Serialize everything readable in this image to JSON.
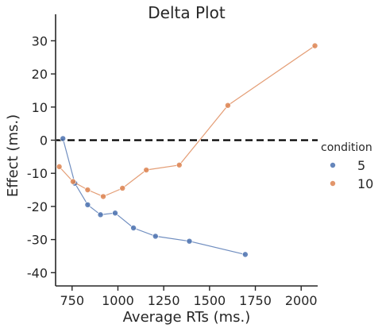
{
  "chart_data": {
    "type": "line",
    "title": "Delta Plot",
    "xlabel": "Average RTs (ms.)",
    "ylabel": "Effect (ms.)",
    "xlim": [
      660,
      2090
    ],
    "ylim": [
      -44,
      38
    ],
    "xticks": [
      750,
      1000,
      1250,
      1500,
      1750,
      2000
    ],
    "yticks": [
      -40,
      -30,
      -20,
      -10,
      0,
      10,
      20,
      30
    ],
    "reference_line": {
      "y": 0,
      "style": "dashed",
      "color": "#000000"
    },
    "grid": false,
    "legend": {
      "title": "condition",
      "placement": "right"
    },
    "series": [
      {
        "name": "5",
        "color": "#4c72b0",
        "points": [
          [
            700,
            0.5
          ],
          [
            765,
            -13
          ],
          [
            835,
            -19.5
          ],
          [
            905,
            -22.5
          ],
          [
            985,
            -22
          ],
          [
            1085,
            -26.5
          ],
          [
            1205,
            -29
          ],
          [
            1390,
            -30.5
          ],
          [
            1695,
            -34.5
          ]
        ]
      },
      {
        "name": "10",
        "color": "#dd8452",
        "points": [
          [
            680,
            -8
          ],
          [
            755,
            -12.5
          ],
          [
            835,
            -15
          ],
          [
            920,
            -17
          ],
          [
            1025,
            -14.5
          ],
          [
            1155,
            -9
          ],
          [
            1335,
            -7.5
          ],
          [
            1600,
            10.5
          ],
          [
            2075,
            28.5
          ]
        ]
      }
    ]
  }
}
